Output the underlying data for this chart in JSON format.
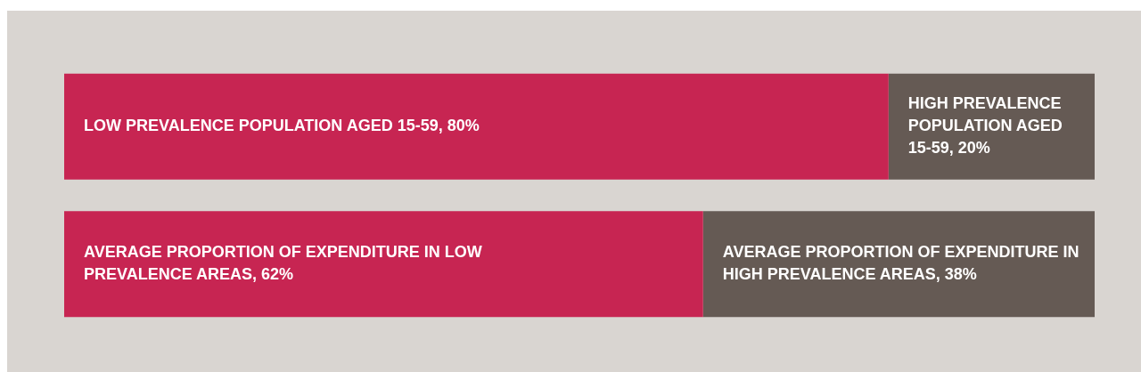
{
  "chart_data": {
    "type": "bar",
    "orientation": "horizontal",
    "stacked": true,
    "categories": [
      null,
      null
    ],
    "xlim": [
      0,
      100
    ],
    "tick_labels": false,
    "series": [
      {
        "color": "#c72552",
        "values": [
          80,
          62
        ],
        "value_labels": [
          "LOW PREVALENCE POPULATION AGED 15-59, 80%",
          "AVERAGE PROPORTION OF EXPENDITURE IN LOW PREVALENCE AREAS, 62%"
        ]
      },
      {
        "color": "#655a54",
        "values": [
          20,
          38
        ],
        "value_labels": [
          "HIGH PREVALENCE POPULATION AGED 15-59, 20%",
          "AVERAGE PROPORTION OF EXPENDITURE IN HIGH PREVALENCE AREAS, 38%"
        ]
      }
    ]
  }
}
